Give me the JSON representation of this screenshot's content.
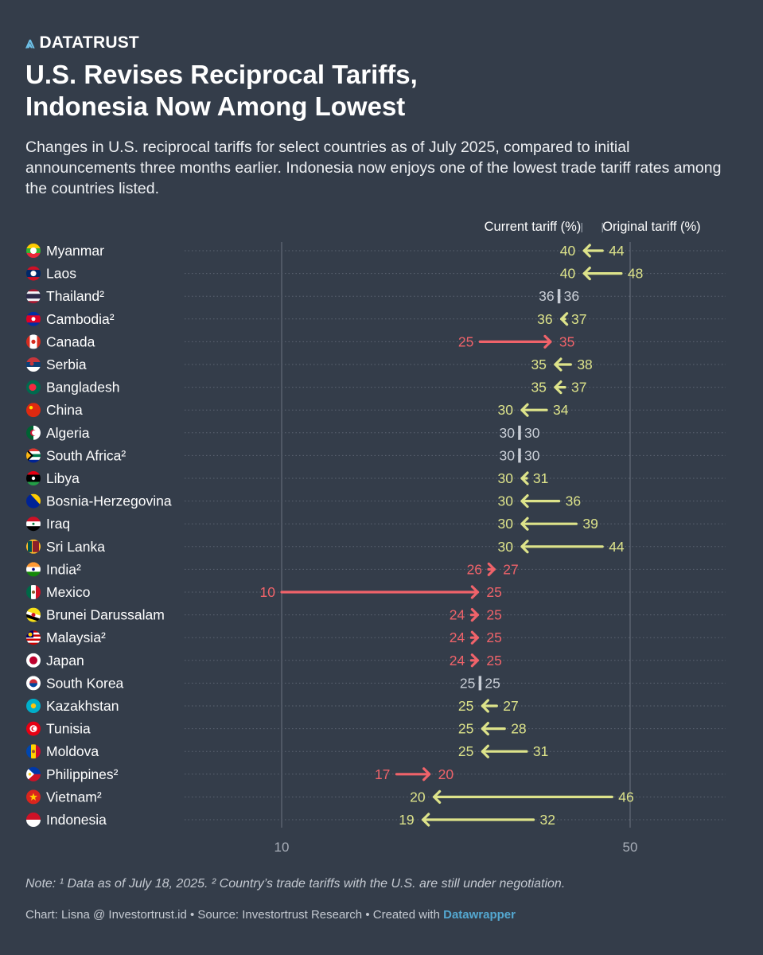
{
  "brand": {
    "name": "DATATRUST",
    "icon": "datatrust-logo-icon"
  },
  "header": {
    "title_line1": "U.S. Revises Reciprocal Tariffs,",
    "title_line2": "Indonesia Now Among Lowest",
    "subtitle": "Changes in U.S. reciprocal tariffs for select countries as of July 2025, compared to initial announcements three months earlier. Indonesia now enjoys one of the lowest trade tariff rates among the countries listed."
  },
  "colors": {
    "background": "#343d4a",
    "decrease": "#dde38a",
    "increase": "#f0636a",
    "unchanged": "#c9ced6",
    "gridline": "#6b7380",
    "link": "#54a8d1"
  },
  "chart_data": {
    "type": "arrow",
    "scale": "log",
    "xlim": [
      7.5,
      80
    ],
    "xticks": [
      10,
      50
    ],
    "legend": {
      "current": "Current tariff (%)",
      "original": "Original tariff (%)",
      "marker_values": [
        40,
        44
      ]
    },
    "series": [
      {
        "name": "Original tariff (%)",
        "field": "original"
      },
      {
        "name": "Current tariff (%)",
        "field": "current"
      }
    ],
    "rows": [
      {
        "country": "Myanmar",
        "flag": "myanmar-flag-icon",
        "current": 40,
        "original": 44
      },
      {
        "country": "Laos",
        "flag": "laos-flag-icon",
        "current": 40,
        "original": 48
      },
      {
        "country": "Thailand²",
        "flag": "thailand-flag-icon",
        "current": 36,
        "original": 36
      },
      {
        "country": "Cambodia²",
        "flag": "cambodia-flag-icon",
        "current": 36,
        "original": 37
      },
      {
        "country": "Canada",
        "flag": "canada-flag-icon",
        "current": 35,
        "original": 25
      },
      {
        "country": "Serbia",
        "flag": "serbia-flag-icon",
        "current": 35,
        "original": 38
      },
      {
        "country": "Bangladesh",
        "flag": "bangladesh-flag-icon",
        "current": 35,
        "original": 37
      },
      {
        "country": "China",
        "flag": "china-flag-icon",
        "current": 30,
        "original": 34
      },
      {
        "country": "Algeria",
        "flag": "algeria-flag-icon",
        "current": 30,
        "original": 30
      },
      {
        "country": "South Africa²",
        "flag": "south-africa-flag-icon",
        "current": 30,
        "original": 30
      },
      {
        "country": "Libya",
        "flag": "libya-flag-icon",
        "current": 30,
        "original": 31
      },
      {
        "country": "Bosnia-Herzegovina",
        "flag": "bosnia-flag-icon",
        "current": 30,
        "original": 36
      },
      {
        "country": "Iraq",
        "flag": "iraq-flag-icon",
        "current": 30,
        "original": 39
      },
      {
        "country": "Sri Lanka",
        "flag": "sri-lanka-flag-icon",
        "current": 30,
        "original": 44
      },
      {
        "country": "India²",
        "flag": "india-flag-icon",
        "current": 27,
        "original": 26
      },
      {
        "country": "Mexico",
        "flag": "mexico-flag-icon",
        "current": 25,
        "original": 10
      },
      {
        "country": "Brunei Darussalam",
        "flag": "brunei-flag-icon",
        "current": 25,
        "original": 24
      },
      {
        "country": "Malaysia²",
        "flag": "malaysia-flag-icon",
        "current": 25,
        "original": 24
      },
      {
        "country": "Japan",
        "flag": "japan-flag-icon",
        "current": 25,
        "original": 24
      },
      {
        "country": "South Korea",
        "flag": "south-korea-flag-icon",
        "current": 25,
        "original": 25
      },
      {
        "country": "Kazakhstan",
        "flag": "kazakhstan-flag-icon",
        "current": 25,
        "original": 27
      },
      {
        "country": "Tunisia",
        "flag": "tunisia-flag-icon",
        "current": 25,
        "original": 28
      },
      {
        "country": "Moldova",
        "flag": "moldova-flag-icon",
        "current": 25,
        "original": 31
      },
      {
        "country": "Philippines²",
        "flag": "philippines-flag-icon",
        "current": 20,
        "original": 17
      },
      {
        "country": "Vietnam²",
        "flag": "vietnam-flag-icon",
        "current": 20,
        "original": 46
      },
      {
        "country": "Indonesia",
        "flag": "indonesia-flag-icon",
        "current": 19,
        "original": 32
      }
    ]
  },
  "footer": {
    "note": "Note: ¹ Data as of July 18, 2025. ² Country’s trade tariffs with the U.S. are still under negotiation.",
    "credits_prefix": "Chart: Lisna @ Investortrust.id • Source: Investortrust Research • Created with ",
    "credits_link": "Datawrapper"
  }
}
